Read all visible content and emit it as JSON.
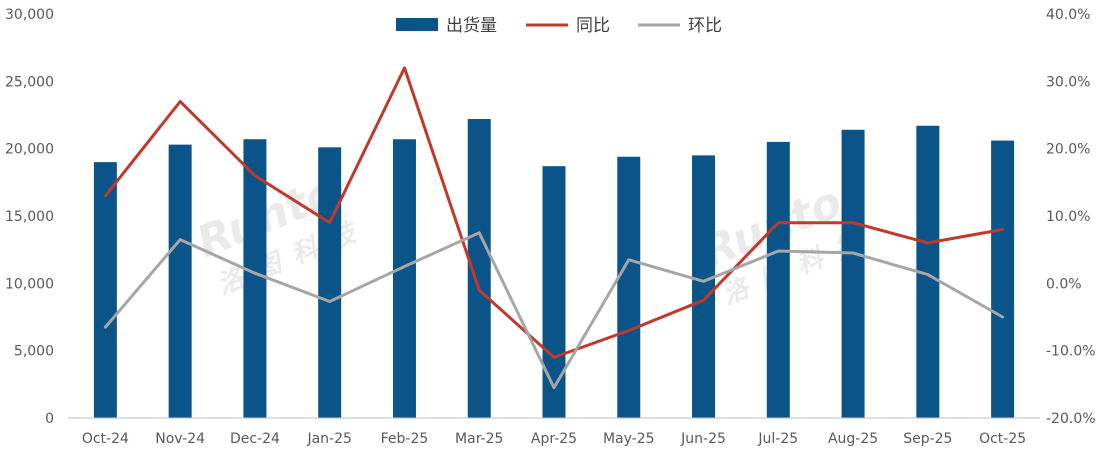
{
  "chart_data": {
    "type": "bar",
    "categories": [
      "Oct-24",
      "Nov-24",
      "Dec-24",
      "Jan-25",
      "Feb-25",
      "Mar-25",
      "Apr-25",
      "May-25",
      "Jun-25",
      "Jul-25",
      "Aug-25",
      "Sep-25",
      "Oct-25"
    ],
    "series": [
      {
        "name": "出货量",
        "type": "bar",
        "axis": "left",
        "color": "#0b5489",
        "values": [
          19000,
          20300,
          20700,
          20100,
          20700,
          22200,
          18700,
          19400,
          19500,
          20500,
          21400,
          21700,
          20600
        ]
      },
      {
        "name": "同比",
        "type": "line",
        "axis": "right",
        "color": "#c0392b",
        "values": [
          13.0,
          27.0,
          16.0,
          9.0,
          32.0,
          -1.0,
          -11.0,
          -7.0,
          -2.5,
          9.0,
          9.0,
          6.0,
          8.0
        ]
      },
      {
        "name": "环比",
        "type": "line",
        "axis": "right",
        "color": "#a6a6a6",
        "values": [
          -6.5,
          6.5,
          1.5,
          -2.7,
          2.5,
          7.5,
          -15.5,
          3.5,
          0.3,
          4.8,
          4.5,
          1.3,
          -5.0
        ]
      }
    ],
    "y_left": {
      "min": 0,
      "max": 30000,
      "ticks": [
        "0",
        "5,000",
        "10,000",
        "15,000",
        "20,000",
        "25,000",
        "30,000"
      ]
    },
    "y_right": {
      "min": -20,
      "max": 40,
      "ticks": [
        "-20.0%",
        "-10.0%",
        "0.0%",
        "10.0%",
        "20.0%",
        "30.0%",
        "40.0%"
      ]
    },
    "grid": false,
    "legend": "top"
  },
  "watermark": {
    "latin": "Runto",
    "cjk": "洛图科技"
  }
}
